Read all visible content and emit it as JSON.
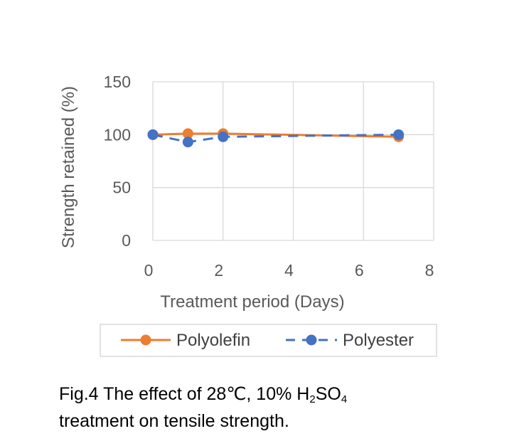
{
  "chart_data": {
    "type": "line",
    "title": "",
    "xlabel": "Treatment period (Days)",
    "ylabel": "Strength retained (%)",
    "xlim": [
      0,
      8
    ],
    "ylim": [
      0,
      150
    ],
    "xticks": [
      0,
      2,
      4,
      6,
      8
    ],
    "yticks": [
      0,
      50,
      100,
      150
    ],
    "grid": true,
    "legend_position": "bottom",
    "series": [
      {
        "name": "Polyolefin",
        "color": "#ED7D31",
        "dash": "solid",
        "x": [
          0,
          1,
          2,
          7
        ],
        "y": [
          100,
          101,
          101,
          98
        ]
      },
      {
        "name": "Polyester",
        "color": "#4472C4",
        "dash": "dashed",
        "x": [
          0,
          1,
          2,
          7
        ],
        "y": [
          100,
          93,
          98,
          100
        ]
      }
    ]
  },
  "caption": {
    "prefix": "Fig.4 The effect of 28℃, 10% H",
    "sub1": "2",
    "mid": "SO",
    "sub2": "4",
    "line2": "treatment on tensile strength."
  }
}
